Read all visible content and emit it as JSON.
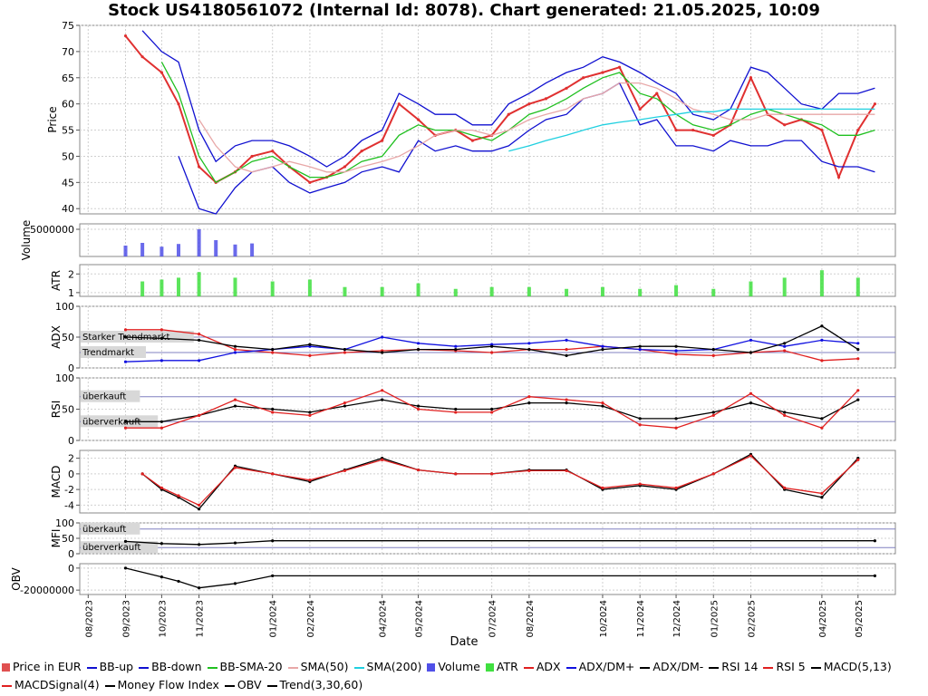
{
  "title": "Stock US4180561072 (Internal Id: 8078). Chart generated: 21.05.2025, 10:09",
  "colors": {
    "price": "#e03030",
    "bb_up": "#1010d0",
    "bb_down": "#1010d0",
    "bb_sma": "#20c020",
    "sma50": "#e8a8a8",
    "sma200": "#20d0e0",
    "volume": "#5050e8",
    "atr": "#40e040",
    "adx": "#e02020",
    "dmplus": "#1010e0",
    "dmminus": "#000000",
    "rsi14": "#000000",
    "rsi5": "#e02020",
    "macd": "#000000",
    "macdsignal": "#e02020",
    "mfi": "#000000",
    "obv": "#000000",
    "ref_line": "#8080c0",
    "grid": "#d0d0d0"
  },
  "chart_data": [
    {
      "type": "line",
      "panel": "price",
      "ylabel": "Price",
      "ylim": [
        39,
        75
      ],
      "yticks": [
        40,
        45,
        50,
        55,
        60,
        65,
        70,
        75
      ],
      "x": [
        "2023-09-01",
        "2023-09-15",
        "2023-10-01",
        "2023-10-15",
        "2023-11-01",
        "2023-11-15",
        "2023-12-01",
        "2023-12-15",
        "2024-01-01",
        "2024-01-15",
        "2024-02-01",
        "2024-02-15",
        "2024-03-01",
        "2024-03-15",
        "2024-04-01",
        "2024-04-15",
        "2024-05-01",
        "2024-05-15",
        "2024-06-01",
        "2024-06-15",
        "2024-07-01",
        "2024-07-15",
        "2024-08-01",
        "2024-08-15",
        "2024-09-01",
        "2024-09-15",
        "2024-10-01",
        "2024-10-15",
        "2024-11-01",
        "2024-11-15",
        "2024-12-01",
        "2024-12-15",
        "2025-01-01",
        "2025-01-15",
        "2025-02-01",
        "2025-02-15",
        "2025-03-01",
        "2025-03-15",
        "2025-04-01",
        "2025-04-15",
        "2025-05-01",
        "2025-05-15"
      ],
      "series": [
        {
          "name": "Price in EUR",
          "values": [
            73,
            69,
            66,
            60,
            48,
            45,
            47,
            50,
            51,
            48,
            45,
            46,
            48,
            51,
            53,
            60,
            57,
            54,
            55,
            53,
            54,
            58,
            60,
            61,
            63,
            65,
            66,
            67,
            59,
            62,
            55,
            55,
            54,
            56,
            65,
            58,
            56,
            57,
            55,
            46,
            55,
            60
          ]
        },
        {
          "name": "BB-up",
          "values": [
            null,
            74,
            70,
            68,
            55,
            49,
            52,
            53,
            53,
            52,
            50,
            48,
            50,
            53,
            55,
            62,
            60,
            58,
            58,
            56,
            56,
            60,
            62,
            64,
            66,
            67,
            69,
            68,
            66,
            64,
            62,
            58,
            57,
            59,
            67,
            66,
            63,
            60,
            59,
            62,
            62,
            63
          ]
        },
        {
          "name": "BB-down",
          "values": [
            null,
            null,
            null,
            50,
            40,
            39,
            44,
            47,
            48,
            45,
            43,
            44,
            45,
            47,
            48,
            47,
            53,
            51,
            52,
            51,
            51,
            52,
            55,
            57,
            58,
            61,
            62,
            64,
            56,
            57,
            52,
            52,
            51,
            53,
            52,
            52,
            53,
            53,
            49,
            48,
            48,
            47
          ]
        },
        {
          "name": "BB-SMA-20",
          "values": [
            null,
            null,
            68,
            62,
            50,
            45,
            47,
            49,
            50,
            48,
            46,
            46,
            47,
            49,
            50,
            54,
            56,
            55,
            55,
            54,
            53,
            55,
            58,
            59,
            61,
            63,
            65,
            66,
            62,
            61,
            58,
            56,
            55,
            56,
            58,
            59,
            58,
            57,
            56,
            54,
            54,
            55
          ]
        },
        {
          "name": "SMA(50)",
          "values": [
            null,
            null,
            null,
            null,
            57,
            52,
            48,
            47,
            48,
            49,
            48,
            47,
            47,
            48,
            49,
            50,
            52,
            54,
            55,
            55,
            54,
            55,
            57,
            58,
            59,
            61,
            62,
            64,
            64,
            63,
            61,
            59,
            58,
            57,
            57,
            58,
            58,
            58,
            58,
            58,
            58,
            58
          ]
        },
        {
          "name": "SMA(200)",
          "values": [
            null,
            null,
            null,
            null,
            null,
            null,
            null,
            null,
            null,
            null,
            null,
            null,
            null,
            null,
            null,
            null,
            null,
            null,
            null,
            null,
            null,
            51,
            52,
            53,
            54,
            55,
            56,
            56.5,
            57,
            57.5,
            58,
            58.5,
            58.5,
            59,
            59,
            59,
            59,
            59,
            59,
            59,
            59,
            59
          ]
        }
      ]
    },
    {
      "type": "bar",
      "panel": "volume",
      "ylabel": "Volume",
      "ylim": [
        0,
        6000000
      ],
      "yticks": [
        5000000
      ],
      "x": [
        "2023-09-01",
        "2023-09-15",
        "2023-10-01",
        "2023-10-15",
        "2023-11-01",
        "2023-11-15",
        "2023-12-01",
        "2023-12-15"
      ],
      "values": [
        2000000,
        2500000,
        1800000,
        2300000,
        5000000,
        3000000,
        2200000,
        2400000
      ]
    },
    {
      "type": "bar",
      "panel": "atr",
      "ylabel": "ATR",
      "ylim": [
        0.8,
        2.5
      ],
      "yticks": [
        1,
        2
      ],
      "x": [
        "2023-09-15",
        "2023-10-01",
        "2023-10-15",
        "2023-11-01",
        "2023-12-01",
        "2024-01-01",
        "2024-02-01",
        "2024-03-01",
        "2024-04-01",
        "2024-05-01",
        "2024-06-01",
        "2024-07-01",
        "2024-08-01",
        "2024-09-01",
        "2024-10-01",
        "2024-11-01",
        "2024-12-01",
        "2025-01-01",
        "2025-02-01",
        "2025-03-01",
        "2025-04-01",
        "2025-05-01"
      ],
      "values": [
        1.6,
        1.7,
        1.8,
        2.1,
        1.8,
        1.6,
        1.7,
        1.3,
        1.3,
        1.5,
        1.2,
        1.3,
        1.3,
        1.2,
        1.3,
        1.2,
        1.4,
        1.2,
        1.6,
        1.8,
        2.2,
        1.8
      ]
    },
    {
      "type": "line",
      "panel": "adx",
      "ylabel": "ADX",
      "ylim": [
        0,
        100
      ],
      "yticks": [
        0,
        50,
        100
      ],
      "reference_lines": [
        {
          "value": 50,
          "label": "Starker Trendmarkt"
        },
        {
          "value": 25,
          "label": "Trendmarkt"
        }
      ],
      "x": [
        "2023-09-01",
        "2023-10-01",
        "2023-11-01",
        "2023-12-01",
        "2024-01-01",
        "2024-02-01",
        "2024-03-01",
        "2024-04-01",
        "2024-05-01",
        "2024-06-01",
        "2024-07-01",
        "2024-08-01",
        "2024-09-01",
        "2024-10-01",
        "2024-11-01",
        "2024-12-01",
        "2025-01-01",
        "2025-02-01",
        "2025-03-01",
        "2025-04-01",
        "2025-05-01"
      ],
      "series": [
        {
          "name": "ADX",
          "values": [
            62,
            62,
            55,
            30,
            25,
            20,
            25,
            28,
            30,
            28,
            25,
            30,
            30,
            35,
            30,
            22,
            20,
            25,
            28,
            12,
            15
          ]
        },
        {
          "name": "ADX/DM+",
          "values": [
            10,
            12,
            12,
            25,
            30,
            35,
            30,
            50,
            40,
            35,
            38,
            40,
            45,
            35,
            30,
            28,
            30,
            45,
            35,
            45,
            40
          ]
        },
        {
          "name": "ADX/DM-",
          "values": [
            50,
            48,
            45,
            35,
            30,
            38,
            30,
            25,
            30,
            30,
            35,
            30,
            20,
            30,
            35,
            35,
            30,
            25,
            40,
            68,
            30
          ]
        }
      ]
    },
    {
      "type": "line",
      "panel": "rsi",
      "ylabel": "RSI",
      "ylim": [
        0,
        100
      ],
      "yticks": [
        0,
        50,
        100
      ],
      "reference_lines": [
        {
          "value": 70,
          "label": "überkauft"
        },
        {
          "value": 30,
          "label": "überverkauft"
        }
      ],
      "x": [
        "2023-09-01",
        "2023-10-01",
        "2023-11-01",
        "2023-12-01",
        "2024-01-01",
        "2024-02-01",
        "2024-03-01",
        "2024-04-01",
        "2024-05-01",
        "2024-06-01",
        "2024-07-01",
        "2024-08-01",
        "2024-09-01",
        "2024-10-01",
        "2024-11-01",
        "2024-12-01",
        "2025-01-01",
        "2025-02-01",
        "2025-03-01",
        "2025-04-01",
        "2025-05-01"
      ],
      "series": [
        {
          "name": "RSI 14",
          "values": [
            30,
            30,
            40,
            55,
            50,
            45,
            55,
            65,
            55,
            50,
            50,
            60,
            60,
            55,
            35,
            35,
            45,
            60,
            45,
            35,
            65
          ]
        },
        {
          "name": "RSI 5",
          "values": [
            20,
            20,
            40,
            65,
            45,
            40,
            60,
            80,
            50,
            45,
            45,
            70,
            65,
            60,
            25,
            20,
            40,
            75,
            40,
            20,
            80
          ]
        }
      ]
    },
    {
      "type": "line",
      "panel": "macd",
      "ylabel": "MACD",
      "ylim": [
        -5,
        3
      ],
      "yticks": [
        -4,
        -2,
        0,
        2
      ],
      "x": [
        "2023-09-15",
        "2023-10-01",
        "2023-10-15",
        "2023-11-01",
        "2023-12-01",
        "2024-01-01",
        "2024-02-01",
        "2024-03-01",
        "2024-04-01",
        "2024-05-01",
        "2024-06-01",
        "2024-07-01",
        "2024-08-01",
        "2024-09-01",
        "2024-10-01",
        "2024-11-01",
        "2024-12-01",
        "2025-01-01",
        "2025-02-01",
        "2025-03-01",
        "2025-04-01",
        "2025-05-01"
      ],
      "series": [
        {
          "name": "MACD(5,13)",
          "values": [
            0,
            -2,
            -3,
            -4.5,
            1,
            0,
            -1,
            0.5,
            2,
            0.5,
            0,
            0,
            0.5,
            0.5,
            -2,
            -1.5,
            -2,
            0,
            2.5,
            -2,
            -3,
            2
          ]
        },
        {
          "name": "MACDSignal(4)",
          "values": [
            0,
            -1.8,
            -2.8,
            -4,
            0.8,
            0,
            -0.8,
            0.4,
            1.8,
            0.5,
            0,
            0,
            0.4,
            0.4,
            -1.8,
            -1.3,
            -1.8,
            0,
            2.3,
            -1.8,
            -2.5,
            1.8
          ]
        }
      ]
    },
    {
      "type": "line",
      "panel": "mfi",
      "ylabel": "MFI",
      "ylim": [
        0,
        100
      ],
      "yticks": [
        0,
        50,
        100
      ],
      "reference_lines": [
        {
          "value": 80,
          "label": "überkauft"
        },
        {
          "value": 20,
          "label": "überverkauft"
        }
      ],
      "x": [
        "2023-09-01",
        "2023-10-01",
        "2023-11-01",
        "2023-12-01",
        "2024-01-01",
        "2025-05-15"
      ],
      "series": [
        {
          "name": "Money Flow Index",
          "values": [
            40,
            33,
            30,
            35,
            42,
            42
          ]
        }
      ]
    },
    {
      "type": "line",
      "panel": "obv",
      "ylabel": "OBV",
      "ylim": [
        -24000000,
        4000000
      ],
      "yticks": [
        0,
        -20000000
      ],
      "x": [
        "2023-09-01",
        "2023-10-01",
        "2023-10-15",
        "2023-11-01",
        "2023-12-01",
        "2024-01-01",
        "2025-05-15"
      ],
      "series": [
        {
          "name": "OBV",
          "values": [
            0,
            -8000000,
            -12000000,
            -18000000,
            -14000000,
            -7000000,
            -7000000
          ]
        }
      ]
    },
    {
      "type": "axis",
      "panel": "date",
      "xlabel": "Date",
      "ticks": [
        "08/2023",
        "09/2023",
        "10/2023",
        "11/2023",
        "01/2024",
        "02/2024",
        "04/2024",
        "05/2024",
        "07/2024",
        "08/2024",
        "10/2024",
        "11/2024",
        "12/2024",
        "01/2025",
        "02/2025",
        "04/2025",
        "05/2025"
      ]
    }
  ],
  "legend": [
    {
      "label": "Price in EUR",
      "kind": "box",
      "color": "#e05050"
    },
    {
      "label": "BB-up",
      "kind": "line",
      "color": "#1010d0"
    },
    {
      "label": "BB-down",
      "kind": "line",
      "color": "#1010d0"
    },
    {
      "label": "BB-SMA-20",
      "kind": "line",
      "color": "#20c020"
    },
    {
      "label": "SMA(50)",
      "kind": "line",
      "color": "#e8a8a8"
    },
    {
      "label": "SMA(200)",
      "kind": "line",
      "color": "#20d0e0"
    },
    {
      "label": "Volume",
      "kind": "box",
      "color": "#5050e8"
    },
    {
      "label": "ATR",
      "kind": "box",
      "color": "#40e040"
    },
    {
      "label": "ADX",
      "kind": "line",
      "color": "#e02020"
    },
    {
      "label": "ADX/DM+",
      "kind": "line",
      "color": "#1010e0"
    },
    {
      "label": "ADX/DM-",
      "kind": "line",
      "color": "#000000"
    },
    {
      "label": "RSI 14",
      "kind": "line",
      "color": "#000000"
    },
    {
      "label": "RSI 5",
      "kind": "line",
      "color": "#e02020"
    },
    {
      "label": "MACD(5,13)",
      "kind": "line",
      "color": "#000000"
    },
    {
      "label": "MACDSignal(4)",
      "kind": "line",
      "color": "#e02020"
    },
    {
      "label": "Money Flow Index",
      "kind": "line",
      "color": "#000000"
    },
    {
      "label": "OBV",
      "kind": "line",
      "color": "#000000"
    },
    {
      "label": "Trend(3,30,60)",
      "kind": "line",
      "color": "#000000"
    }
  ]
}
